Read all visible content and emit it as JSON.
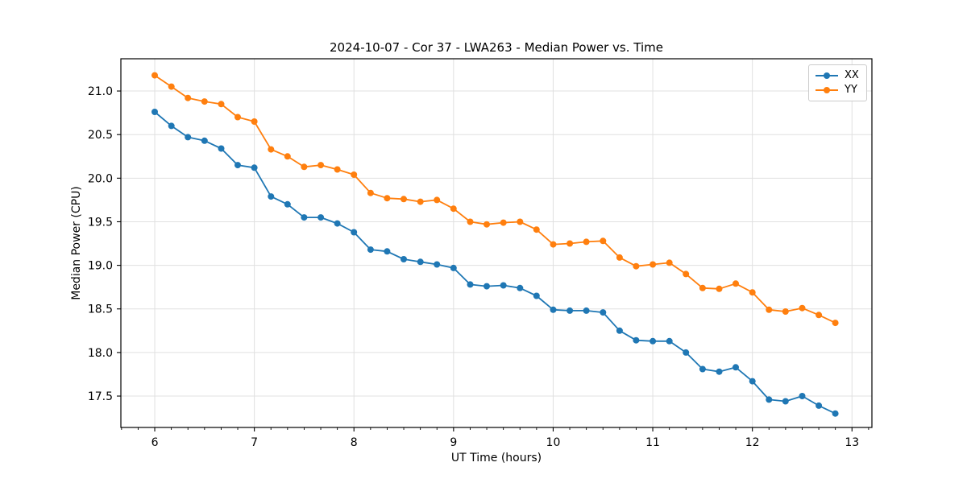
{
  "chart_data": {
    "type": "line",
    "title": "2024-10-07 - Cor 37 - LWA263 - Median Power vs. Time",
    "xlabel": "UT Time (hours)",
    "ylabel": "Median Power (CPU)",
    "xlim": [
      5.66,
      13.2
    ],
    "ylim": [
      17.14,
      21.37
    ],
    "x_ticks": [
      6,
      7,
      8,
      9,
      10,
      11,
      12,
      13
    ],
    "y_ticks": [
      17.5,
      18.0,
      18.5,
      19.0,
      19.5,
      20.0,
      20.5,
      21.0
    ],
    "x_minor_tick_step": 0.1667,
    "grid": true,
    "grid_color": "#e0e0e0",
    "legend_position": "upper right",
    "marker": "circle",
    "x": [
      6.0,
      6.167,
      6.333,
      6.5,
      6.667,
      6.833,
      7.0,
      7.167,
      7.333,
      7.5,
      7.667,
      7.833,
      8.0,
      8.167,
      8.333,
      8.5,
      8.667,
      8.833,
      9.0,
      9.167,
      9.333,
      9.5,
      9.667,
      9.833,
      10.0,
      10.167,
      10.333,
      10.5,
      10.667,
      10.833,
      11.0,
      11.167,
      11.333,
      11.5,
      11.667,
      11.833,
      12.0,
      12.167,
      12.333,
      12.5,
      12.667,
      12.833
    ],
    "series": [
      {
        "name": "XX",
        "color": "#1f77b4",
        "values": [
          20.76,
          20.6,
          20.47,
          20.43,
          20.34,
          20.15,
          20.12,
          19.79,
          19.7,
          19.55,
          19.55,
          19.48,
          19.38,
          19.18,
          19.16,
          19.07,
          19.04,
          19.01,
          18.97,
          18.78,
          18.76,
          18.77,
          18.74,
          18.65,
          18.49,
          18.48,
          18.48,
          18.46,
          18.25,
          18.14,
          18.13,
          18.13,
          18.0,
          17.81,
          17.78,
          17.83,
          17.67,
          17.46,
          17.44,
          17.5,
          17.39,
          17.3
        ]
      },
      {
        "name": "YY",
        "color": "#ff7f0e",
        "values": [
          21.18,
          21.05,
          20.92,
          20.88,
          20.85,
          20.7,
          20.65,
          20.33,
          20.25,
          20.13,
          20.15,
          20.1,
          20.04,
          19.83,
          19.77,
          19.76,
          19.73,
          19.75,
          19.65,
          19.5,
          19.47,
          19.49,
          19.5,
          19.41,
          19.24,
          19.25,
          19.27,
          19.28,
          19.09,
          18.99,
          19.01,
          19.03,
          18.9,
          18.74,
          18.73,
          18.79,
          18.69,
          18.49,
          18.47,
          18.51,
          18.43,
          18.34
        ]
      }
    ]
  }
}
